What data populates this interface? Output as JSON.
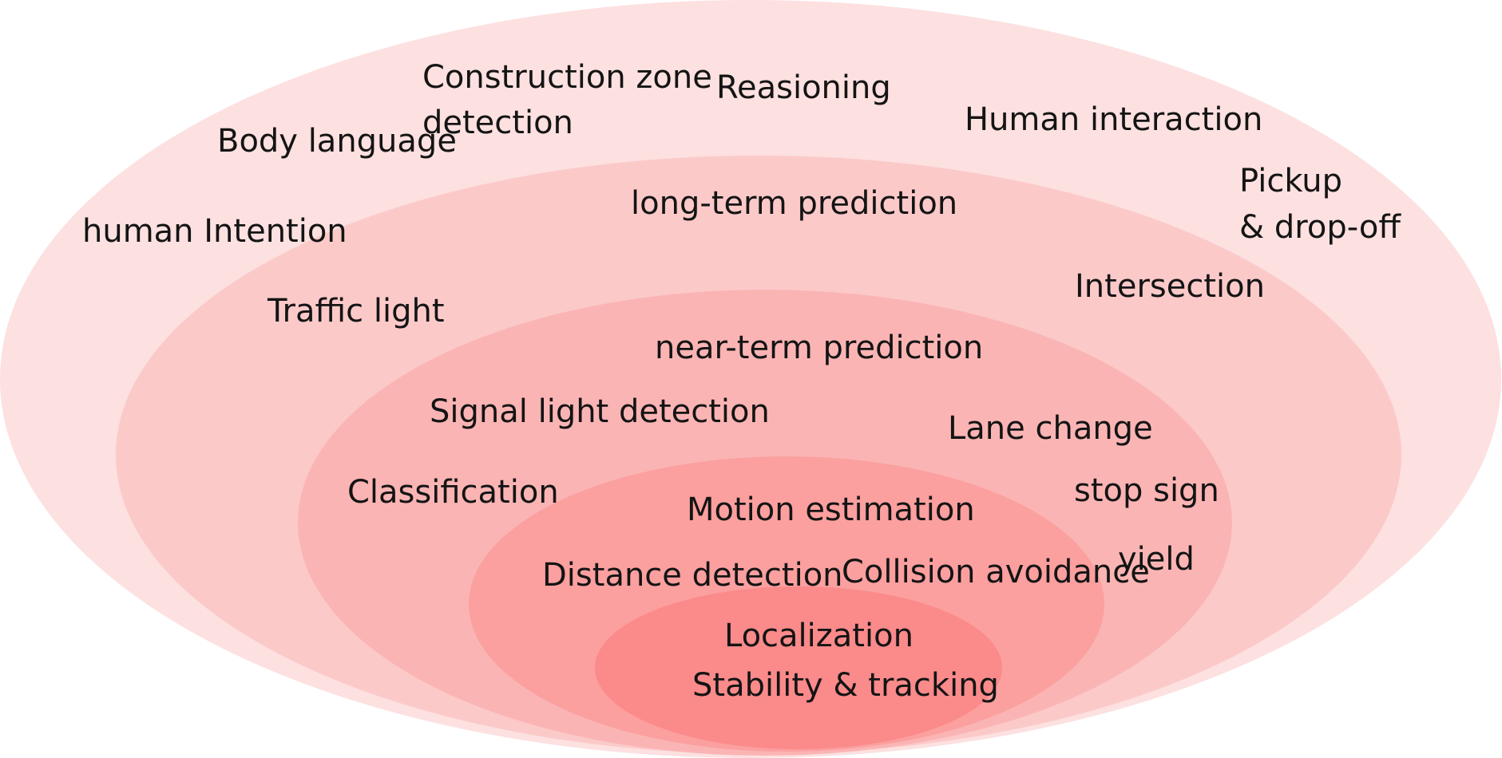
{
  "diagram": {
    "layers": [
      {
        "name": "outer",
        "color": "#fde0e0"
      },
      {
        "name": "second",
        "color": "#fcc9c9"
      },
      {
        "name": "middle",
        "color": "#fbb4b4"
      },
      {
        "name": "fourth",
        "color": "#fb9f9f"
      },
      {
        "name": "core",
        "color": "#fb8a8a"
      }
    ],
    "labels": {
      "construction_zone_line1": "Construction zone",
      "construction_zone_line2": "detection",
      "reasioning": "Reasioning",
      "body_language": "Body language",
      "human_interaction": "Human interaction",
      "pickup_line1": "Pickup",
      "pickup_line2": "& drop-off",
      "human_intention": "human Intention",
      "long_term_prediction": "long-term prediction",
      "intersection": "Intersection",
      "traffic_light": "Traffic light",
      "near_term_prediction": "near-term prediction",
      "signal_light_detection": "Signal light detection",
      "lane_change": "Lane change",
      "classification": "Classification",
      "stop_sign": "stop sign",
      "motion_estimation": "Motion estimation",
      "yield": "yield",
      "distance_detection": "Distance detection",
      "collision_avoidance": "Collision avoidance",
      "localization": "Localization",
      "stability_tracking": "Stability & tracking"
    }
  }
}
